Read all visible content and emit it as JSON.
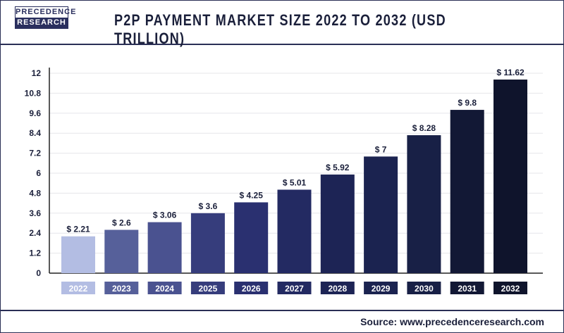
{
  "logo": {
    "line1": "PRECEDENCE",
    "line2": "RESEARCH"
  },
  "title": "P2P PAYMENT MARKET SIZE 2022 TO 2032 (USD TRILLION)",
  "source": "Source: www.precedenceresearch.com",
  "chart_data": {
    "type": "bar",
    "title": "P2P PAYMENT MARKET SIZE 2022 TO 2032 (USD TRILLION)",
    "categories": [
      "2022",
      "2023",
      "2024",
      "2025",
      "2026",
      "2027",
      "2028",
      "2029",
      "2030",
      "2031",
      "2032"
    ],
    "values": [
      2.21,
      2.6,
      3.06,
      3.6,
      4.25,
      5.01,
      5.92,
      7,
      8.28,
      9.8,
      11.62
    ],
    "data_labels": [
      "$ 2.21",
      "$ 2.6",
      "$ 3.06",
      "$ 3.6",
      "$ 4.25",
      "$ 5.01",
      "$ 5.92",
      "$ 7",
      "$ 8.28",
      "$ 9.8",
      "$ 11.62"
    ],
    "ylim": [
      0,
      12
    ],
    "yticks": [
      "0",
      "1.2",
      "2.4",
      "3.6",
      "4.8",
      "6",
      "7.2",
      "8.4",
      "9.6",
      "10.8",
      "12"
    ],
    "grid": true,
    "colors": [
      "#b3bde3",
      "#56609a",
      "#4a5290",
      "#363d7c",
      "#2a3070",
      "#232a62",
      "#1d2455",
      "#1b2350",
      "#182046",
      "#121835",
      "#0f142c"
    ]
  }
}
